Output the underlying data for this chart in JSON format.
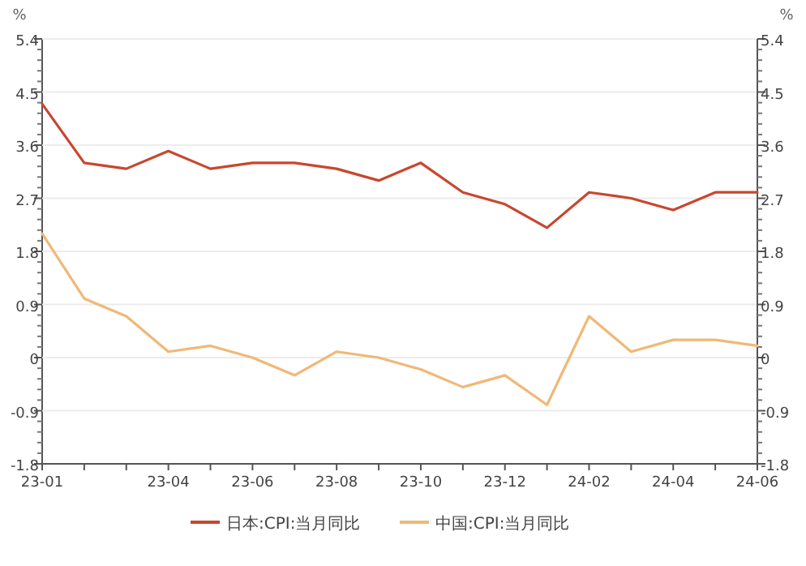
{
  "chart_data": {
    "type": "line",
    "categories": [
      "23-01",
      null,
      null,
      "23-04",
      null,
      "23-06",
      null,
      "23-08",
      null,
      "23-10",
      null,
      "23-12",
      null,
      "24-02",
      null,
      "24-04",
      null,
      "24-06"
    ],
    "series": [
      {
        "name": "日本:CPI:当月同比",
        "color": "#c8472f",
        "values": [
          4.3,
          3.3,
          3.2,
          3.5,
          3.2,
          3.3,
          3.3,
          3.2,
          3.0,
          3.3,
          2.8,
          2.6,
          2.2,
          2.8,
          2.7,
          2.5,
          2.8,
          2.8
        ]
      },
      {
        "name": "中国:CPI:当月同比",
        "color": "#f0b877",
        "values": [
          2.1,
          1.0,
          0.7,
          0.1,
          0.2,
          0.0,
          -0.3,
          0.1,
          0.0,
          -0.2,
          -0.5,
          -0.3,
          -0.8,
          0.7,
          0.1,
          0.3,
          0.3,
          0.2
        ]
      }
    ],
    "ylabel": "%",
    "y2label": "%",
    "ylim": [
      -1.8,
      5.4
    ],
    "yticks": [
      -1.8,
      -0.9,
      0,
      0.9,
      1.8,
      2.7,
      3.6,
      4.5,
      5.4
    ],
    "y2lim": [
      -1.8,
      5.4
    ],
    "y2ticks": [
      -1.8,
      -0.9,
      0,
      0.9,
      1.8,
      2.7,
      3.6,
      4.5,
      5.4
    ],
    "grid": "y",
    "legend": "bottom",
    "marker": "none",
    "line_style": "solid"
  }
}
